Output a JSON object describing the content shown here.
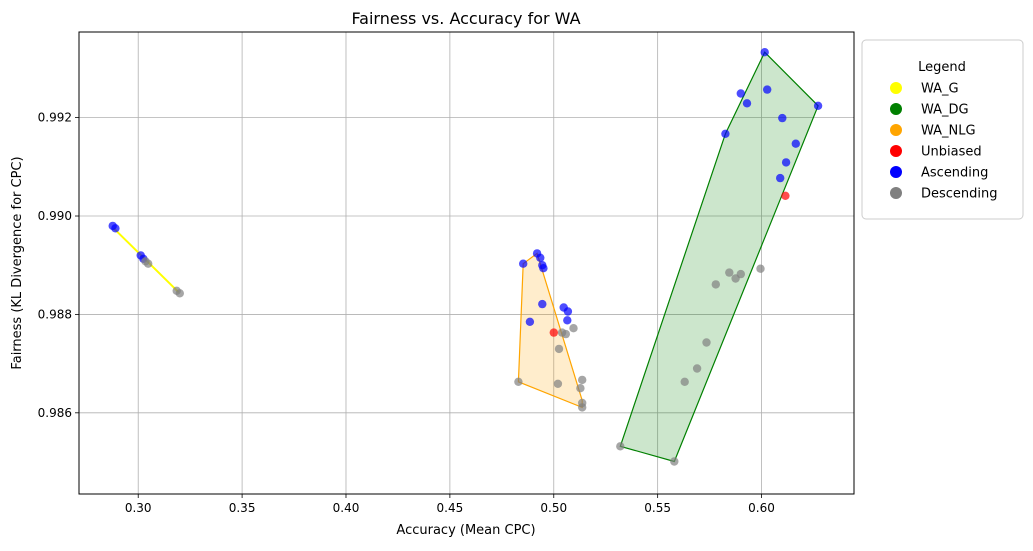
{
  "chart_data": {
    "type": "scatter",
    "title": "Fairness vs. Accuracy for WA",
    "xlabel": "Accuracy (Mean CPC)",
    "ylabel": "Fairness (KL Divergence for CPC)",
    "xlim": [
      0.2715,
      0.6445
    ],
    "ylim": [
      0.98435,
      0.99374
    ],
    "xticks": [
      0.3,
      0.35,
      0.4,
      0.45,
      0.5,
      0.55,
      0.6
    ],
    "xtick_labels": [
      "0.30",
      "0.35",
      "0.40",
      "0.45",
      "0.50",
      "0.55",
      "0.60"
    ],
    "yticks": [
      0.986,
      0.988,
      0.99,
      0.992
    ],
    "ytick_labels": [
      "0.986",
      "0.988",
      "0.990",
      "0.992"
    ],
    "grid": true,
    "legend": {
      "title": "Legend",
      "placement": "outside-right-top",
      "entries": [
        {
          "label": "WA_G",
          "color": "#ffff00"
        },
        {
          "label": "WA_DG",
          "color": "#008000"
        },
        {
          "label": "WA_NLG",
          "color": "#ffa500"
        },
        {
          "label": "Unbiased",
          "color": "#ff0000"
        },
        {
          "label": "Ascending",
          "color": "#0000ff"
        },
        {
          "label": "Descending",
          "color": "#808080"
        }
      ]
    },
    "hulls": [
      {
        "name": "WA_G",
        "type": "line",
        "stroke": "#ffff00",
        "points": [
          [
            0.2882,
            0.98975
          ],
          [
            0.3195,
            0.98845
          ]
        ]
      },
      {
        "name": "WA_NLG",
        "type": "polygon",
        "stroke": "#ffa500",
        "fill": "#ffa500",
        "fill_opacity": 0.2,
        "points": [
          [
            0.4853,
            0.98903
          ],
          [
            0.492,
            0.98924
          ],
          [
            0.5137,
            0.98625
          ],
          [
            0.5137,
            0.98611
          ],
          [
            0.483,
            0.98663
          ]
        ]
      },
      {
        "name": "WA_DG",
        "type": "polygon",
        "stroke": "#008000",
        "fill": "#008000",
        "fill_opacity": 0.2,
        "points": [
          [
            0.6015,
            0.99333
          ],
          [
            0.6272,
            0.99224
          ],
          [
            0.558,
            0.98501
          ],
          [
            0.532,
            0.98532
          ],
          [
            0.5826,
            0.99167
          ]
        ]
      }
    ],
    "series": [
      {
        "name": "Ascending",
        "color": "#0000ff",
        "points": [
          [
            0.2877,
            0.9898
          ],
          [
            0.289,
            0.98975
          ],
          [
            0.3012,
            0.9892
          ],
          [
            0.3025,
            0.98913
          ],
          [
            0.4853,
            0.98903
          ],
          [
            0.492,
            0.98924
          ],
          [
            0.4935,
            0.98915
          ],
          [
            0.4945,
            0.989
          ],
          [
            0.495,
            0.98894
          ],
          [
            0.4945,
            0.98821
          ],
          [
            0.4885,
            0.98785
          ],
          [
            0.5048,
            0.98814
          ],
          [
            0.5068,
            0.98806
          ],
          [
            0.5065,
            0.98788
          ],
          [
            0.6015,
            0.99333
          ],
          [
            0.59,
            0.99249
          ],
          [
            0.6027,
            0.99257
          ],
          [
            0.593,
            0.99229
          ],
          [
            0.6272,
            0.99224
          ],
          [
            0.5826,
            0.99167
          ],
          [
            0.61,
            0.99199
          ],
          [
            0.6165,
            0.99147
          ],
          [
            0.6118,
            0.99109
          ],
          [
            0.609,
            0.99077
          ]
        ]
      },
      {
        "name": "Descending",
        "color": "#808080",
        "points": [
          [
            0.3035,
            0.98908
          ],
          [
            0.3048,
            0.98903
          ],
          [
            0.3185,
            0.98848
          ],
          [
            0.32,
            0.98843
          ],
          [
            0.483,
            0.98663
          ],
          [
            0.502,
            0.98659
          ],
          [
            0.5137,
            0.98667
          ],
          [
            0.5128,
            0.9865
          ],
          [
            0.5137,
            0.9862
          ],
          [
            0.5137,
            0.98611
          ],
          [
            0.5025,
            0.9873
          ],
          [
            0.504,
            0.98763
          ],
          [
            0.5058,
            0.9876
          ],
          [
            0.5095,
            0.98772
          ],
          [
            0.532,
            0.98532
          ],
          [
            0.558,
            0.98501
          ],
          [
            0.563,
            0.98663
          ],
          [
            0.569,
            0.9869
          ],
          [
            0.5735,
            0.98743
          ],
          [
            0.578,
            0.98861
          ],
          [
            0.5845,
            0.98885
          ],
          [
            0.5875,
            0.98873
          ],
          [
            0.59,
            0.98882
          ],
          [
            0.5995,
            0.98893
          ]
        ]
      },
      {
        "name": "Unbiased",
        "color": "#ff0000",
        "points": [
          [
            0.5,
            0.98763
          ],
          [
            0.6115,
            0.99041
          ]
        ]
      }
    ]
  }
}
